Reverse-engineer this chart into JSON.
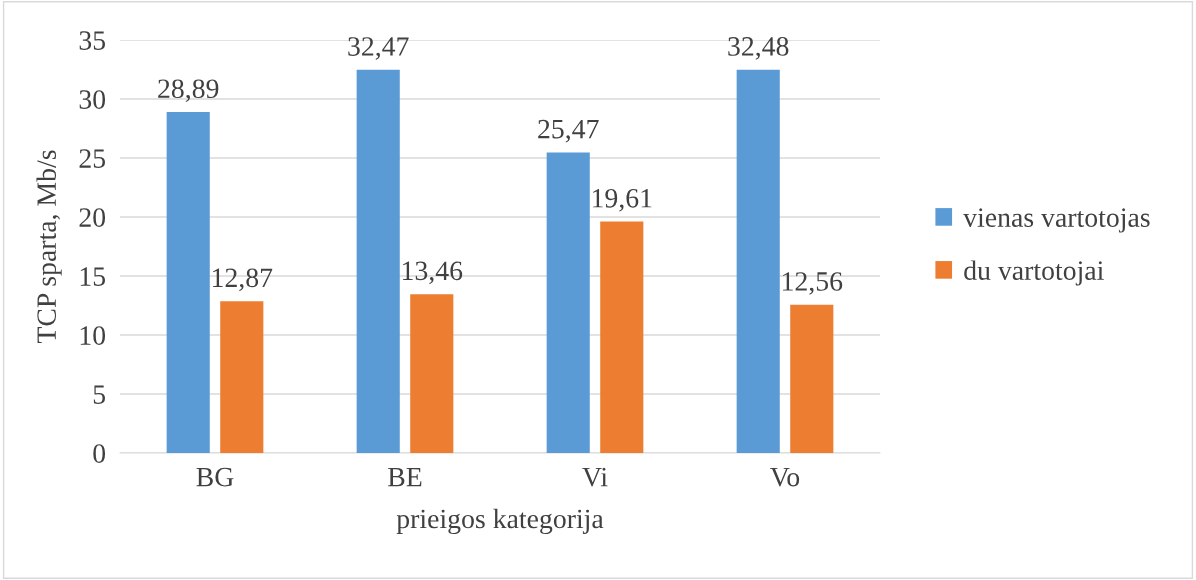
{
  "chart_data": {
    "type": "bar",
    "xlabel": "prieigos kategorija",
    "ylabel": "TCP sparta, Mb/s",
    "categories": [
      "BG",
      "BE",
      "Vi",
      "Vo"
    ],
    "series": [
      {
        "name": "vienas vartotojas",
        "color": "#5b9bd5",
        "values": [
          28.89,
          32.47,
          25.47,
          32.48
        ],
        "value_labels": [
          "28,89",
          "32,47",
          "25,47",
          "32,48"
        ]
      },
      {
        "name": "du vartotojai",
        "color": "#ed7d31",
        "values": [
          12.87,
          13.46,
          19.61,
          12.56
        ],
        "value_labels": [
          "12,87",
          "13,46",
          "19,61",
          "12,56"
        ]
      }
    ],
    "ylim": [
      0,
      35
    ],
    "yticks": [
      0,
      5,
      10,
      15,
      20,
      25,
      30,
      35
    ],
    "grid": "y",
    "legend": "right"
  }
}
